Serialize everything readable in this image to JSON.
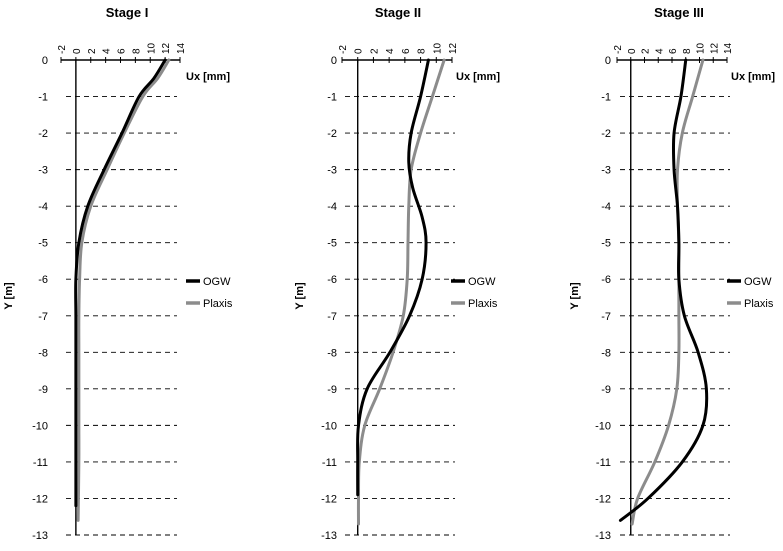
{
  "chart_data": [
    {
      "type": "line",
      "title": "Stage I",
      "xlabel": "Ux [mm]",
      "ylabel": "Y [m]",
      "xlim": [
        -2,
        14
      ],
      "ylim": [
        -13,
        0
      ],
      "x_ticks": [
        "-2",
        "0",
        "2",
        "4",
        "6",
        "8",
        "10",
        "12",
        "14"
      ],
      "y_ticks": [
        "0",
        "-1",
        "-2",
        "-3",
        "-4",
        "-5",
        "-6",
        "-7",
        "-8",
        "-9",
        "-10",
        "-11",
        "-12",
        "-13"
      ],
      "grid": "horizontal dashed",
      "legend": "right",
      "series": [
        {
          "name": "OGW",
          "color": "#000000",
          "x": [
            12.0,
            10.5,
            8.5,
            6.2,
            3.8,
            1.6,
            0.4,
            0.0,
            0.0,
            0.0,
            0.0,
            0.0,
            0.0,
            0.0
          ],
          "y": [
            0,
            -0.5,
            -1.0,
            -2.0,
            -3.0,
            -4.0,
            -5.0,
            -6.0,
            -7.0,
            -8.0,
            -9.0,
            -10.0,
            -11.0,
            -12.2
          ]
        },
        {
          "name": "Plaxis",
          "color": "#8c8c8c",
          "x": [
            12.5,
            11.0,
            9.0,
            6.5,
            4.2,
            2.0,
            0.8,
            0.5,
            0.4,
            0.4,
            0.4,
            0.4,
            0.4,
            0.3
          ],
          "y": [
            0,
            -0.5,
            -1.0,
            -2.0,
            -3.0,
            -4.0,
            -5.0,
            -6.0,
            -7.0,
            -8.0,
            -9.0,
            -10.0,
            -11.0,
            -12.6
          ]
        }
      ]
    },
    {
      "type": "line",
      "title": "Stage II",
      "xlabel": "Ux [mm]",
      "ylabel": "Y [m]",
      "xlim": [
        -2,
        12
      ],
      "ylim": [
        -13,
        0
      ],
      "x_ticks": [
        "-2",
        "0",
        "2",
        "4",
        "6",
        "8",
        "10",
        "12"
      ],
      "y_ticks": [
        "0",
        "-1",
        "-2",
        "-3",
        "-4",
        "-5",
        "-6",
        "-7",
        "-8",
        "-9",
        "-10",
        "-11",
        "-12",
        "-13"
      ],
      "grid": "horizontal dashed",
      "legend": "right",
      "series": [
        {
          "name": "OGW",
          "color": "#000000",
          "x": [
            9.0,
            8.0,
            6.8,
            6.5,
            7.0,
            8.2,
            8.7,
            8.2,
            6.6,
            4.1,
            1.2,
            0.1,
            0.0,
            0.0
          ],
          "y": [
            0,
            -1.0,
            -2.0,
            -2.8,
            -3.5,
            -4.3,
            -5.0,
            -6.0,
            -7.0,
            -8.0,
            -9.0,
            -10.0,
            -11.0,
            -11.9
          ]
        },
        {
          "name": "Plaxis",
          "color": "#8c8c8c",
          "x": [
            11.0,
            9.5,
            8.0,
            6.8,
            6.5,
            6.4,
            6.3,
            5.8,
            4.5,
            2.8,
            0.9,
            0.2,
            0.1,
            0.1
          ],
          "y": [
            0,
            -1.0,
            -2.0,
            -3.0,
            -4.0,
            -5.0,
            -6.0,
            -7.0,
            -8.0,
            -9.0,
            -10.0,
            -11.0,
            -12.0,
            -12.7
          ]
        }
      ]
    },
    {
      "type": "line",
      "title": "Stage III",
      "xlabel": "Ux [mm]",
      "ylabel": "Y [m]",
      "xlim": [
        -2,
        14
      ],
      "ylim": [
        -13,
        0
      ],
      "x_ticks": [
        "-2",
        "0",
        "2",
        "4",
        "6",
        "8",
        "10",
        "12",
        "14"
      ],
      "y_ticks": [
        "0",
        "-1",
        "-2",
        "-3",
        "-4",
        "-5",
        "-6",
        "-7",
        "-8",
        "-9",
        "-10",
        "-11",
        "-12",
        "-13"
      ],
      "grid": "horizontal dashed",
      "legend": "right",
      "series": [
        {
          "name": "OGW",
          "color": "#000000",
          "x": [
            8.0,
            7.3,
            6.3,
            6.3,
            6.8,
            7.0,
            7.0,
            7.8,
            9.8,
            11.0,
            10.5,
            7.5,
            2.5,
            -1.5
          ],
          "y": [
            0,
            -1.0,
            -2.0,
            -3.0,
            -4.0,
            -5.0,
            -6.0,
            -7.0,
            -8.0,
            -9.0,
            -10.0,
            -11.0,
            -12.0,
            -12.6
          ]
        },
        {
          "name": "Plaxis",
          "color": "#8c8c8c",
          "x": [
            10.5,
            9.0,
            7.5,
            6.8,
            6.8,
            7.0,
            7.0,
            7.0,
            7.0,
            6.7,
            5.5,
            3.5,
            1.0,
            0.2
          ],
          "y": [
            0,
            -1.0,
            -2.0,
            -3.0,
            -4.0,
            -5.0,
            -6.0,
            -7.0,
            -8.0,
            -9.0,
            -10.0,
            -11.0,
            -12.0,
            -12.7
          ]
        }
      ]
    }
  ]
}
